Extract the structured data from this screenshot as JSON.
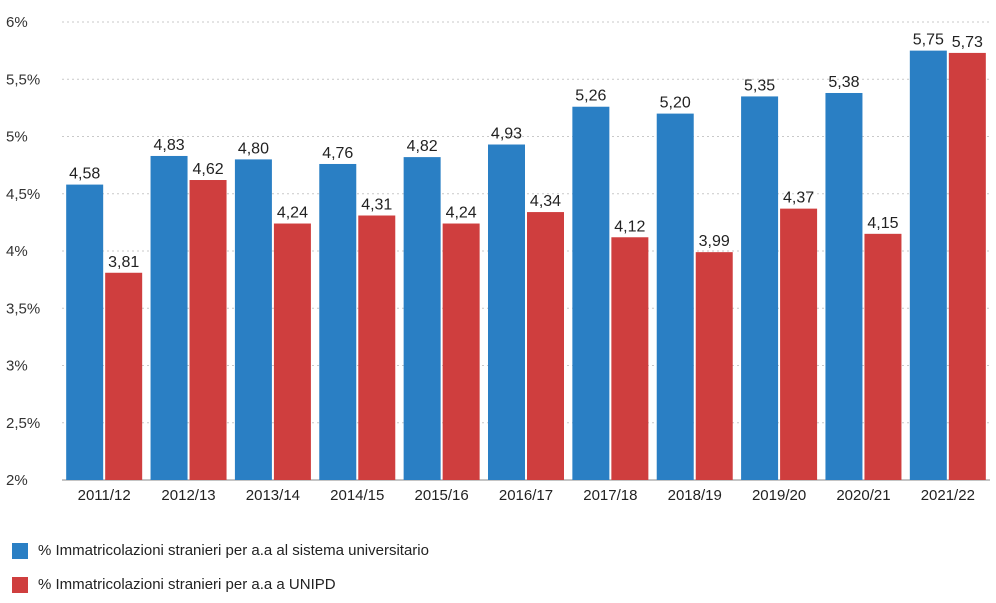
{
  "chart_data": {
    "type": "bar",
    "title": "",
    "xlabel": "",
    "ylabel": "",
    "categories": [
      "2011/12",
      "2012/13",
      "2013/14",
      "2014/15",
      "2015/16",
      "2016/17",
      "2017/18",
      "2018/19",
      "2019/20",
      "2020/21",
      "2021/22"
    ],
    "series": [
      {
        "name": "% Immatricolazioni stranieri per a.a al sistema universitario",
        "color": "#2a7fc4",
        "values": [
          4.58,
          4.83,
          4.8,
          4.76,
          4.82,
          4.93,
          5.26,
          5.2,
          5.35,
          5.38,
          5.75
        ],
        "labels": [
          "4,58",
          "4,83",
          "4,80",
          "4,76",
          "4,82",
          "4,93",
          "5,26",
          "5,20",
          "5,35",
          "5,38",
          "5,75"
        ]
      },
      {
        "name": "% Immatricolazioni stranieri per a.a a UNIPD",
        "color": "#cf3e3e",
        "values": [
          3.81,
          4.62,
          4.24,
          4.31,
          4.24,
          4.34,
          4.12,
          3.99,
          4.37,
          4.15,
          5.73
        ],
        "labels": [
          "3,81",
          "4,62",
          "4,24",
          "4,31",
          "4,24",
          "4,34",
          "4,12",
          "3,99",
          "4,37",
          "4,15",
          "5,73"
        ]
      }
    ],
    "ylim": [
      2,
      6
    ],
    "yticks": [
      2,
      2.5,
      3,
      3.5,
      4,
      4.5,
      5,
      5.5,
      6
    ],
    "ytick_labels": [
      "2%",
      "2,5%",
      "3%",
      "3,5%",
      "4%",
      "4,5%",
      "5%",
      "5,5%",
      "6%"
    ],
    "grid": true,
    "legend_position": "bottom-left"
  }
}
